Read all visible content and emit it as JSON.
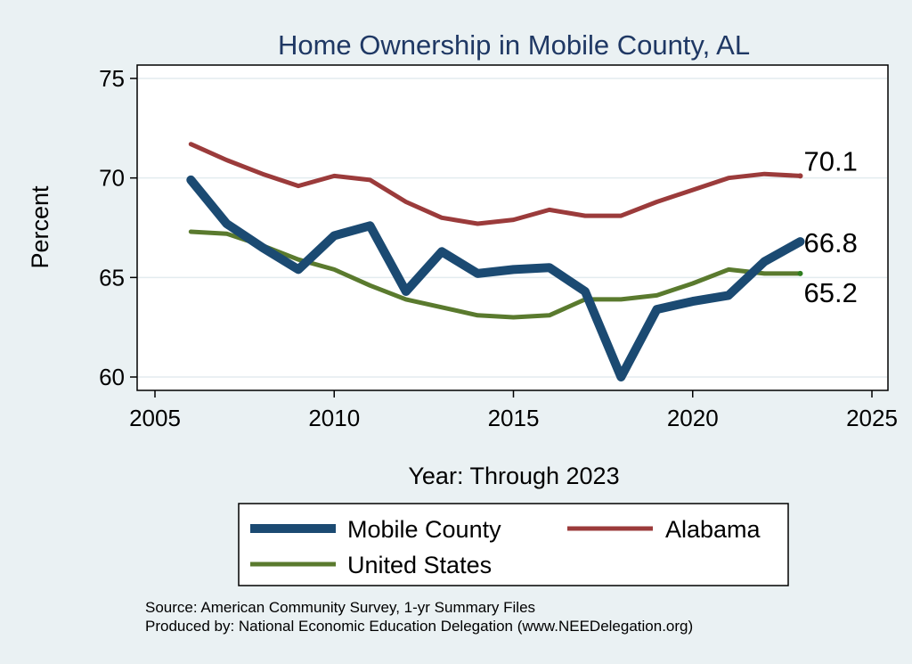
{
  "chart_data": {
    "type": "line",
    "title": "Home Ownership in Mobile County, AL",
    "xlabel": "Year: Through 2023",
    "ylabel": "Percent",
    "xlim": [
      2005,
      2025
    ],
    "ylim": [
      59.7,
      75.4
    ],
    "x_ticks": [
      2005,
      2010,
      2015,
      2020,
      2025
    ],
    "y_ticks": [
      60,
      65,
      70,
      75
    ],
    "x_tick_labels": [
      "2005",
      "2010",
      "2015",
      "2020",
      "2025"
    ],
    "y_tick_labels": [
      "60",
      "65",
      "70",
      "75"
    ],
    "grid": true,
    "legend_position": "bottom",
    "series": [
      {
        "name": "Mobile County",
        "color": "#1b4a72",
        "x": [
          2006,
          2007,
          2008,
          2009,
          2010,
          2011,
          2012,
          2013,
          2014,
          2015,
          2016,
          2017,
          2018,
          2019,
          2020,
          2021,
          2022,
          2023
        ],
        "values": [
          69.9,
          67.7,
          66.5,
          65.4,
          67.1,
          67.6,
          64.3,
          66.3,
          65.2,
          65.4,
          65.5,
          64.3,
          60.0,
          63.4,
          63.8,
          64.1,
          65.8,
          66.8
        ],
        "end_label": "66.8"
      },
      {
        "name": "Alabama",
        "color": "#9b3b3b",
        "x": [
          2006,
          2007,
          2008,
          2009,
          2010,
          2011,
          2012,
          2013,
          2014,
          2015,
          2016,
          2017,
          2018,
          2019,
          2020,
          2021,
          2022,
          2023
        ],
        "values": [
          71.7,
          70.9,
          70.2,
          69.6,
          70.1,
          69.9,
          68.8,
          68.0,
          67.7,
          67.9,
          68.4,
          68.1,
          68.1,
          68.8,
          69.4,
          70.0,
          70.2,
          70.1
        ],
        "end_label": "70.1"
      },
      {
        "name": "United States",
        "color": "#5a7a2e",
        "x": [
          2006,
          2007,
          2008,
          2009,
          2010,
          2011,
          2012,
          2013,
          2014,
          2015,
          2016,
          2017,
          2018,
          2019,
          2020,
          2021,
          2022,
          2023
        ],
        "values": [
          67.3,
          67.2,
          66.6,
          65.9,
          65.4,
          64.6,
          63.9,
          63.5,
          63.1,
          63.0,
          63.1,
          63.9,
          63.9,
          64.1,
          64.7,
          65.4,
          65.2,
          65.2
        ],
        "end_label": "65.2"
      }
    ],
    "source_lines": [
      "Source: American Community Survey, 1-yr Summary Files",
      "Produced by: National Economic Education Delegation (www.NEEDelegation.org)"
    ]
  }
}
